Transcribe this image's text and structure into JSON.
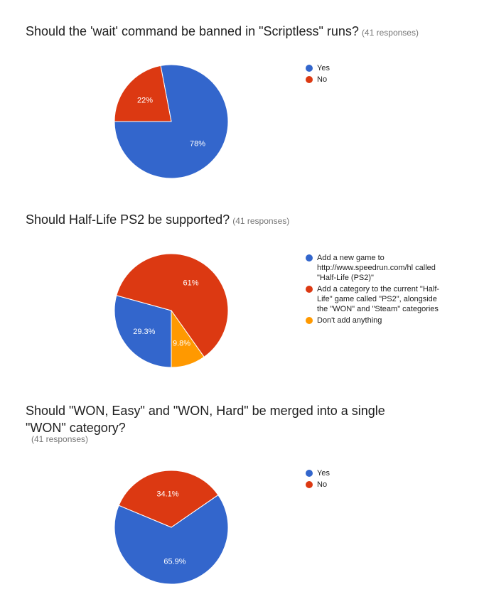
{
  "chart_data": [
    {
      "type": "pie",
      "title": "Should the 'wait' command be banned in \"Scriptless\" runs?",
      "responses": "(41 responses)",
      "categories": [
        "Yes",
        "No"
      ],
      "values": [
        78,
        22
      ],
      "labels": [
        "78%",
        "22%"
      ],
      "colors": [
        "#3366cc",
        "#dc3912"
      ],
      "legend_position": "right"
    },
    {
      "type": "pie",
      "title": "Should Half-Life PS2 be supported?",
      "responses": "(41 responses)",
      "categories": [
        "Add a new game to http://www.speedrun.com/hl called \"Half-Life (PS2)\"",
        "Add a category to the current \"Half-Life\" game called \"PS2\", alongside the \"WON\" and \"Steam\" categories",
        "Don't add anything"
      ],
      "values": [
        29.3,
        61,
        9.8
      ],
      "labels": [
        "29.3%",
        "61%",
        "9.8%"
      ],
      "colors": [
        "#3366cc",
        "#dc3912",
        "#ff9900"
      ],
      "legend_position": "right"
    },
    {
      "type": "pie",
      "title": "Should \"WON, Easy\" and \"WON, Hard\" be merged into a single \"WON\" category?",
      "responses": "(41 responses)",
      "categories": [
        "Yes",
        "No"
      ],
      "values": [
        65.9,
        34.1
      ],
      "labels": [
        "65.9%",
        "34.1%"
      ],
      "colors": [
        "#3366cc",
        "#dc3912"
      ],
      "legend_position": "right"
    }
  ]
}
